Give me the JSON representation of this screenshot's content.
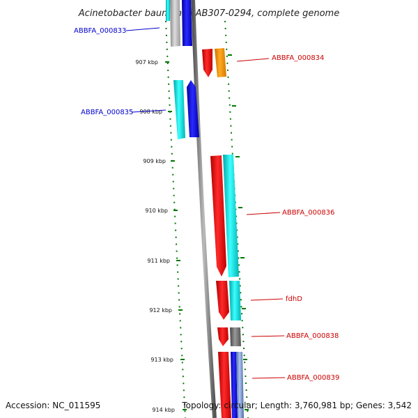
{
  "title": "Acinetobacter baumannii AB307-0294, complete genome",
  "accession": "Accession: NC_011595",
  "topology": "Topology: circular; Length: 3,760,981 bp; Genes: 3,542",
  "ticks": [
    "907 kbp",
    "908 kbp",
    "909 kbp",
    "910 kbp",
    "911 kbp",
    "912 kbp",
    "913 kbp",
    "914 kbp"
  ],
  "gene_labels": [
    {
      "text": "ABBFA_000833",
      "color": "#0000cc"
    },
    {
      "text": "ABBFA_000834",
      "color": "#cc0000"
    },
    {
      "text": "ABBFA_000835",
      "color": "#0000cc"
    },
    {
      "text": "ABBFA_000836",
      "color": "#cc0000"
    },
    {
      "text": "fdhD",
      "color": "#cc0000"
    },
    {
      "text": "ABBFA_000838",
      "color": "#cc0000"
    },
    {
      "text": "ABBFA_000839",
      "color": "#cc0000"
    }
  ],
  "colors": {
    "red": "#ff0000",
    "blue": "#0000ff",
    "cyan": "#00e5e5",
    "orange": "#ff9900",
    "grey": "#aaaaaa",
    "backbone": "#777777",
    "ticks": "#007700"
  }
}
